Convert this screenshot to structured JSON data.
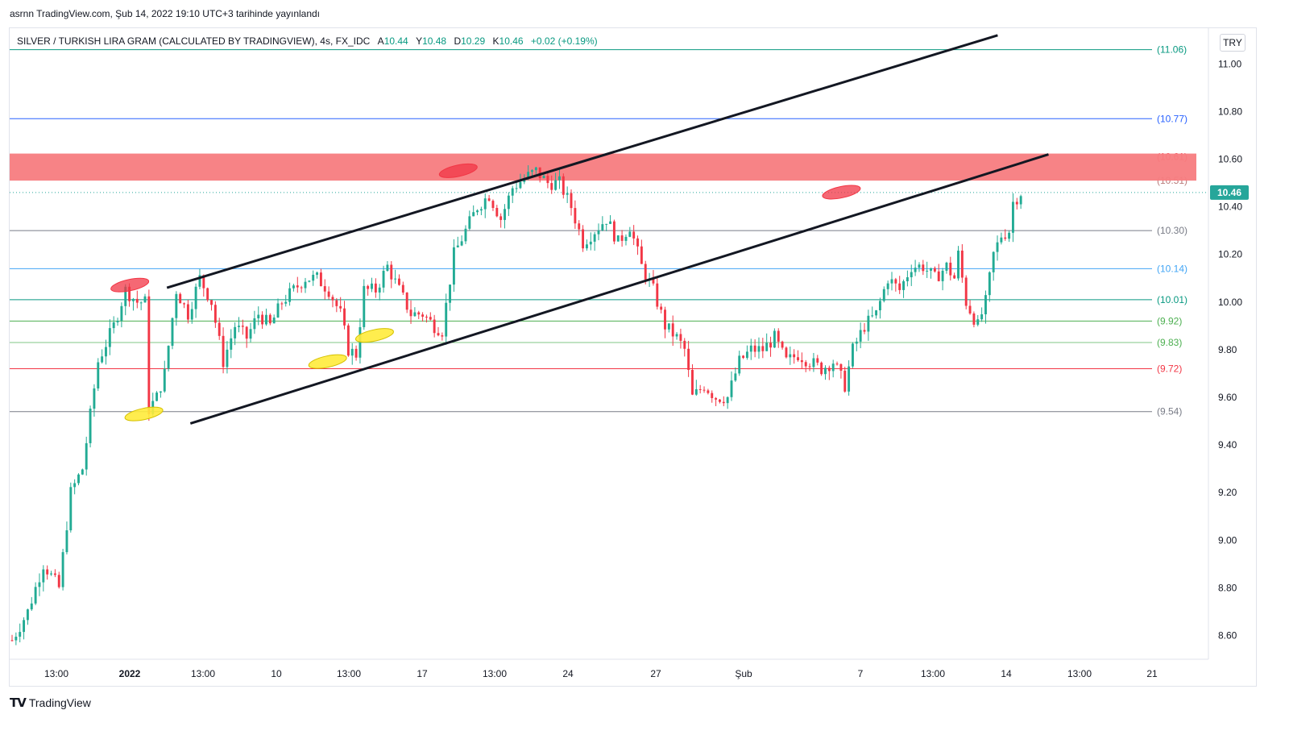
{
  "header": {
    "published": "asrnn TradingView.com, Şub 14, 2022 19:10 UTC+3 tarihinde yayınlandı"
  },
  "legend": {
    "symbol": "SILVER / TURKISH LIRA GRAM (CALCULATED BY TRADINGVIEW), 4s, FX_IDC",
    "open_label": "A",
    "open": "10.44",
    "high_label": "Y",
    "high": "10.48",
    "low_label": "D",
    "low": "10.29",
    "close_label": "K",
    "close": "10.46",
    "change": "+0.02 (+0.19%)"
  },
  "currency_button": "TRY",
  "footer": {
    "brand": "TradingView",
    "logo_icon": "tradingview-logo-icon"
  },
  "colors": {
    "up": "#22ab94",
    "down": "#f23645",
    "zone": "#f77c80",
    "price_tag": "#26a69a"
  },
  "chart_data": {
    "type": "candlestick",
    "title": "",
    "ylim": [
      8.5,
      11.15
    ],
    "y_ticks": [
      "11.00",
      "10.80",
      "10.60",
      "10.40",
      "10.20",
      "10.00",
      "9.80",
      "9.60",
      "9.40",
      "9.20",
      "9.00",
      "8.80",
      "8.60"
    ],
    "x_ticks": [
      "13:00",
      "2022",
      "13:00",
      "10",
      "13:00",
      "17",
      "13:00",
      "24",
      "27",
      "Şub",
      "7",
      "13:00",
      "14",
      "13:00",
      "21"
    ],
    "last_price": "10.46",
    "price_anchors": [
      [
        0,
        8.58
      ],
      [
        4,
        8.7
      ],
      [
        8,
        8.9
      ],
      [
        12,
        8.8
      ],
      [
        15,
        9.2
      ],
      [
        18,
        9.3
      ],
      [
        22,
        9.75
      ],
      [
        26,
        9.9
      ],
      [
        29,
        10.05
      ],
      [
        32,
        10.0
      ],
      [
        34,
        10.0
      ],
      [
        35,
        9.55
      ],
      [
        37,
        9.6
      ],
      [
        39,
        9.7
      ],
      [
        42,
        10.05
      ],
      [
        45,
        9.95
      ],
      [
        48,
        10.1
      ],
      [
        51,
        10.0
      ],
      [
        54,
        9.75
      ],
      [
        57,
        9.9
      ],
      [
        60,
        9.85
      ],
      [
        63,
        9.95
      ],
      [
        66,
        9.9
      ],
      [
        69,
        10.0
      ],
      [
        72,
        10.05
      ],
      [
        75,
        10.1
      ],
      [
        78,
        10.1
      ],
      [
        81,
        10.05
      ],
      [
        84,
        9.95
      ],
      [
        86,
        9.8
      ],
      [
        88,
        9.78
      ],
      [
        90,
        10.05
      ],
      [
        93,
        10.05
      ],
      [
        96,
        10.15
      ],
      [
        99,
        10.05
      ],
      [
        102,
        9.95
      ],
      [
        105,
        9.95
      ],
      [
        108,
        9.9
      ],
      [
        110,
        9.88
      ],
      [
        113,
        10.2
      ],
      [
        116,
        10.3
      ],
      [
        119,
        10.4
      ],
      [
        122,
        10.45
      ],
      [
        125,
        10.35
      ],
      [
        128,
        10.48
      ],
      [
        131,
        10.52
      ],
      [
        134,
        10.55
      ],
      [
        137,
        10.5
      ],
      [
        140,
        10.5
      ],
      [
        143,
        10.4
      ],
      [
        146,
        10.25
      ],
      [
        149,
        10.3
      ],
      [
        152,
        10.35
      ],
      [
        155,
        10.25
      ],
      [
        158,
        10.32
      ],
      [
        161,
        10.15
      ],
      [
        164,
        10.05
      ],
      [
        167,
        9.9
      ],
      [
        170,
        9.85
      ],
      [
        172,
        9.8
      ],
      [
        174,
        9.6
      ],
      [
        177,
        9.65
      ],
      [
        180,
        9.6
      ],
      [
        183,
        9.6
      ],
      [
        186,
        9.75
      ],
      [
        189,
        9.8
      ],
      [
        192,
        9.8
      ],
      [
        195,
        9.85
      ],
      [
        198,
        9.75
      ],
      [
        201,
        9.78
      ],
      [
        204,
        9.75
      ],
      [
        207,
        9.72
      ],
      [
        210,
        9.75
      ],
      [
        213,
        9.65
      ],
      [
        215,
        9.8
      ],
      [
        218,
        9.9
      ],
      [
        221,
        9.95
      ],
      [
        224,
        10.1
      ],
      [
        227,
        10.05
      ],
      [
        230,
        10.15
      ],
      [
        233,
        10.15
      ],
      [
        236,
        10.1
      ],
      [
        239,
        10.15
      ],
      [
        241,
        10.1
      ],
      [
        242,
        10.2
      ],
      [
        244,
        10.0
      ],
      [
        247,
        9.9
      ],
      [
        249,
        10.0
      ],
      [
        251,
        10.2
      ],
      [
        253,
        10.28
      ],
      [
        255,
        10.3
      ],
      [
        256,
        10.42
      ],
      [
        258,
        10.46
      ]
    ],
    "horizontal_levels": [
      {
        "label": "(11.06)",
        "value": 11.06,
        "color": "#089981",
        "label_color": "#089981"
      },
      {
        "label": "(10.77)",
        "value": 10.77,
        "color": "#2962ff",
        "label_color": "#2962ff"
      },
      {
        "label": "(10.61)",
        "value": 10.61,
        "color": "#f77c80",
        "label_color": "#f23645"
      },
      {
        "label": "(10.51)",
        "value": 10.51,
        "color": "#f77c80",
        "label_color": "#b87a7a"
      },
      {
        "label": "(10.30)",
        "value": 10.3,
        "color": "#787b86",
        "label_color": "#787b86"
      },
      {
        "label": "(10.14)",
        "value": 10.14,
        "color": "#42a5f5",
        "label_color": "#42a5f5"
      },
      {
        "label": "(10.01)",
        "value": 10.01,
        "color": "#089981",
        "label_color": "#089981"
      },
      {
        "label": "(9.92)",
        "value": 9.92,
        "color": "#4caf50",
        "label_color": "#4caf50"
      },
      {
        "label": "(9.83)",
        "value": 9.83,
        "color": "#81c784",
        "label_color": "#4caf50"
      },
      {
        "label": "(9.72)",
        "value": 9.72,
        "color": "#f23645",
        "label_color": "#f23645"
      },
      {
        "label": "(9.54)",
        "value": 9.54,
        "color": "#787b86",
        "label_color": "#787b86"
      }
    ],
    "resistance_zone": [
      10.51,
      10.61
    ],
    "trend_lines": [
      {
        "name": "upper-channel",
        "points": [
          [
            19,
            10.06
          ],
          [
            236,
            11.12
          ]
        ]
      },
      {
        "name": "lower-channel",
        "points": [
          [
            25,
            9.49
          ],
          [
            249,
            10.62
          ]
        ]
      }
    ],
    "highlight_markers": [
      {
        "color": "#f23645",
        "bar": 26,
        "value": 10.07
      },
      {
        "color": "#f23645",
        "bar": 110,
        "value": 10.55
      },
      {
        "color": "#f23645",
        "bar": 208,
        "value": 10.46
      },
      {
        "color": "#ffeb3b",
        "bar": 30,
        "value": 9.53
      },
      {
        "color": "#ffeb3b",
        "bar": 77,
        "value": 9.75
      },
      {
        "color": "#ffeb3b",
        "bar": 89,
        "value": 9.86
      }
    ]
  }
}
